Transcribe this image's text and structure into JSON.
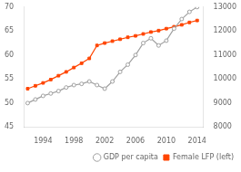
{
  "chart_data": {
    "type": "line",
    "x": [
      1992,
      1993,
      1994,
      1995,
      1996,
      1997,
      1998,
      1999,
      2000,
      2001,
      2002,
      2003,
      2004,
      2005,
      2006,
      2007,
      2008,
      2009,
      2010,
      2011,
      2012,
      2013,
      2014
    ],
    "xlim": [
      1991.5,
      2014.8
    ],
    "xticks": [
      1994,
      1998,
      2002,
      2006,
      2010,
      2014
    ],
    "ylim": [
      45,
      70
    ],
    "yticks": [
      45,
      50,
      55,
      60,
      65,
      70
    ],
    "y2lim": [
      8000,
      13000
    ],
    "y2ticks": [
      8000,
      9000,
      10000,
      11000,
      12000,
      13000
    ],
    "grid": false,
    "legend": "lower right",
    "series": [
      {
        "name": "GDP per capita",
        "color": "#A0A0A0",
        "marker": "circle",
        "axis": "y2",
        "values": [
          9000,
          9150,
          9300,
          9400,
          9500,
          9650,
          9750,
          9800,
          9900,
          9750,
          9600,
          9900,
          10300,
          10600,
          11000,
          11500,
          11700,
          11400,
          11600,
          12100,
          12500,
          12800,
          13000
        ]
      },
      {
        "name": "Female LFP (left)",
        "color": "#FF4500",
        "marker": "square",
        "values": [
          53.0,
          53.6,
          54.2,
          54.9,
          55.7,
          56.5,
          57.4,
          58.3,
          59.3,
          62.0,
          62.5,
          62.9,
          63.3,
          63.7,
          64.0,
          64.4,
          64.8,
          65.1,
          65.5,
          65.9,
          66.3,
          66.8,
          67.2
        ]
      }
    ]
  }
}
